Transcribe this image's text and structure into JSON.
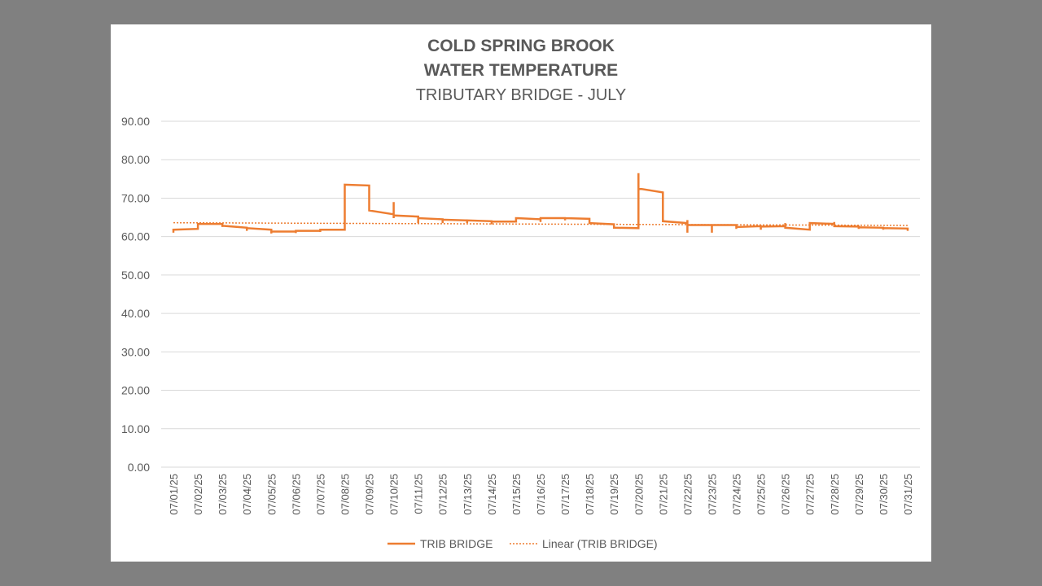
{
  "chart_data": {
    "type": "line",
    "title": "COLD SPRING BROOK",
    "subtitle": "WATER TEMPERATURE",
    "subtitle2": "TRIBUTARY BRIDGE - JULY",
    "ylim": [
      0,
      90
    ],
    "yticks": [
      "0.00",
      "10.00",
      "20.00",
      "30.00",
      "40.00",
      "50.00",
      "60.00",
      "70.00",
      "80.00",
      "90.00"
    ],
    "categories": [
      "07/01/25",
      "07/02/25",
      "07/03/25",
      "07/04/25",
      "07/05/25",
      "07/06/25",
      "07/07/25",
      "07/08/25",
      "07/09/25",
      "07/10/25",
      "07/11/25",
      "07/12/25",
      "07/13/25",
      "07/14/25",
      "07/15/25",
      "07/16/25",
      "07/17/25",
      "07/18/25",
      "07/19/25",
      "07/20/25",
      "07/21/25",
      "07/22/25",
      "07/23/25",
      "07/24/25",
      "07/25/25",
      "07/26/25",
      "07/27/25",
      "07/28/25",
      "07/29/25",
      "07/30/25",
      "07/31/25"
    ],
    "grid": true,
    "legend_position": "bottom",
    "series": [
      {
        "name": "TRIB BRIDGE",
        "color": "#ED7D31",
        "points": [
          [
            0,
            61
          ],
          [
            0,
            61.8
          ],
          [
            1,
            62
          ],
          [
            1,
            63.3
          ],
          [
            2,
            63.3
          ],
          [
            2,
            62.5
          ],
          [
            2,
            62.8
          ],
          [
            3,
            62.3
          ],
          [
            3,
            61.5
          ],
          [
            3,
            62.2
          ],
          [
            4,
            61.8
          ],
          [
            4,
            60.8
          ],
          [
            4,
            61.3
          ],
          [
            5,
            61.3
          ],
          [
            5,
            60.9
          ],
          [
            5,
            61.5
          ],
          [
            6,
            61.5
          ],
          [
            6,
            61.2
          ],
          [
            6,
            61.8
          ],
          [
            7,
            61.8
          ],
          [
            7,
            73.5
          ],
          [
            8,
            73.3
          ],
          [
            8,
            66.8
          ],
          [
            9,
            65.8
          ],
          [
            9,
            69
          ],
          [
            9,
            64.8
          ],
          [
            9,
            65.5
          ],
          [
            10,
            65.2
          ],
          [
            10,
            63.5
          ],
          [
            10,
            64.8
          ],
          [
            11,
            64.5
          ],
          [
            11,
            63.5
          ],
          [
            11,
            64.4
          ],
          [
            12,
            64.2
          ],
          [
            12,
            63.5
          ],
          [
            12,
            64.2
          ],
          [
            13,
            64
          ],
          [
            13,
            63.2
          ],
          [
            13,
            63.9
          ],
          [
            14,
            63.9
          ],
          [
            14,
            64.8
          ],
          [
            15,
            64.5
          ],
          [
            15,
            63.8
          ],
          [
            15,
            64.8
          ],
          [
            16,
            64.8
          ],
          [
            16,
            64.2
          ],
          [
            16,
            64.8
          ],
          [
            17,
            64.6
          ],
          [
            17,
            63.5
          ],
          [
            18,
            63.2
          ],
          [
            18,
            62.3
          ],
          [
            19,
            62.2
          ],
          [
            19,
            76.5
          ],
          [
            19,
            72.5
          ],
          [
            20,
            71.5
          ],
          [
            20,
            64
          ],
          [
            21,
            63.5
          ],
          [
            21,
            64.3
          ],
          [
            21,
            61
          ],
          [
            21,
            63
          ],
          [
            22,
            63
          ],
          [
            22,
            61
          ],
          [
            22,
            63
          ],
          [
            23,
            63
          ],
          [
            23,
            62
          ],
          [
            23,
            62.5
          ],
          [
            24,
            62.7
          ],
          [
            24,
            61.8
          ],
          [
            24,
            62.6
          ],
          [
            25,
            62.7
          ],
          [
            25,
            63.5
          ],
          [
            25,
            62.3
          ],
          [
            26,
            61.8
          ],
          [
            26,
            63.5
          ],
          [
            27,
            63.3
          ],
          [
            27,
            63.8
          ],
          [
            27,
            62.7
          ],
          [
            28,
            62.6
          ],
          [
            28,
            62
          ],
          [
            28,
            62.4
          ],
          [
            29,
            62.3
          ],
          [
            29,
            61.8
          ],
          [
            29,
            62.2
          ],
          [
            30,
            62.1
          ],
          [
            30,
            61.5
          ],
          [
            30,
            62
          ]
        ]
      },
      {
        "name": "Linear (TRIB BRIDGE)",
        "color": "#ED7D31",
        "trend": [
          63.6,
          62.9
        ]
      }
    ]
  }
}
